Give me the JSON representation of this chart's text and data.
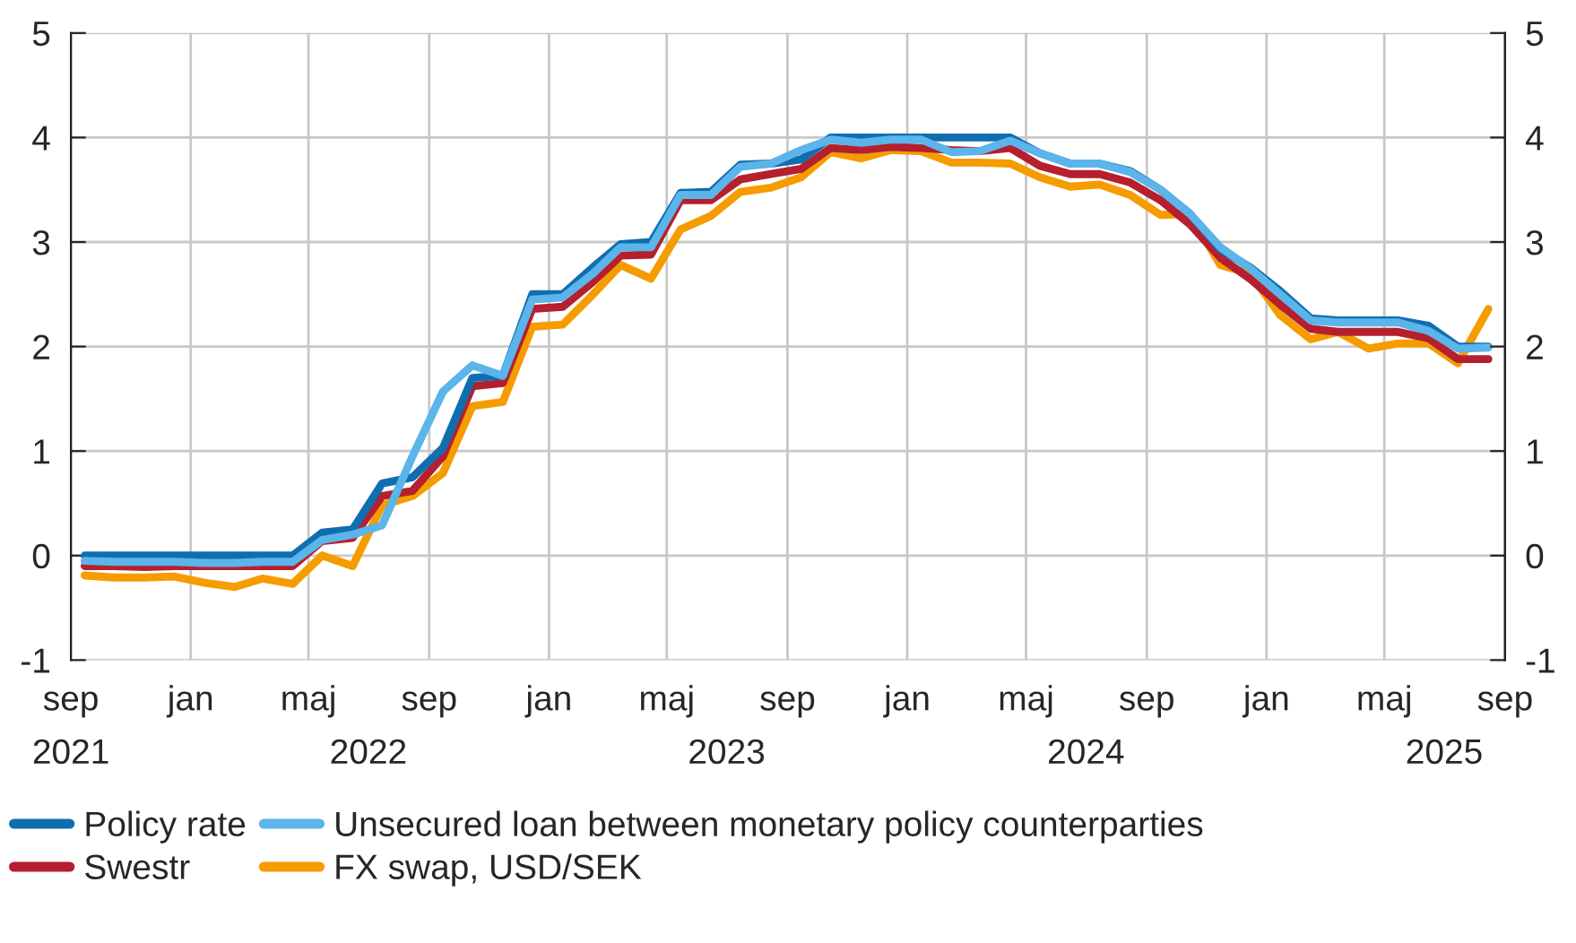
{
  "chart_data": {
    "type": "line",
    "x": [
      "2021-09-15",
      "2021-10-15",
      "2021-11-15",
      "2021-12-15",
      "2022-01-15",
      "2022-02-15",
      "2022-03-15",
      "2022-04-15",
      "2022-05-15",
      "2022-06-15",
      "2022-07-15",
      "2022-08-15",
      "2022-09-15",
      "2022-10-15",
      "2022-11-15",
      "2022-12-15",
      "2023-01-15",
      "2023-02-15",
      "2023-03-15",
      "2023-04-15",
      "2023-05-15",
      "2023-06-15",
      "2023-07-15",
      "2023-08-15",
      "2023-09-15",
      "2023-10-15",
      "2023-11-15",
      "2023-12-15",
      "2024-01-15",
      "2024-02-15",
      "2024-03-15",
      "2024-04-15",
      "2024-05-15",
      "2024-06-15",
      "2024-07-15",
      "2024-08-15",
      "2024-09-15",
      "2024-10-15",
      "2024-11-15",
      "2024-12-15",
      "2025-01-15",
      "2025-02-15",
      "2025-03-15",
      "2025-04-15",
      "2025-05-15",
      "2025-06-15",
      "2025-07-15",
      "2025-08-15"
    ],
    "series": [
      {
        "name": "Policy rate",
        "color": "#106eb0",
        "values": [
          0,
          0,
          0,
          0,
          0,
          0,
          0,
          0,
          0.22,
          0.25,
          0.69,
          0.75,
          1.03,
          1.7,
          1.72,
          2.5,
          2.5,
          2.76,
          2.98,
          3.0,
          3.47,
          3.48,
          3.74,
          3.75,
          3.79,
          4.0,
          4.0,
          4.0,
          4.0,
          4.0,
          4.0,
          4.0,
          3.85,
          3.75,
          3.75,
          3.68,
          3.5,
          3.27,
          2.93,
          2.76,
          2.53,
          2.27,
          2.25,
          2.25,
          2.25,
          2.2,
          2.0,
          2.0
        ]
      },
      {
        "name": "Unsecured loan between monetary policy counterparties",
        "color": "#5bb4ea",
        "values": [
          -0.05,
          -0.06,
          -0.06,
          -0.06,
          -0.07,
          -0.07,
          -0.06,
          -0.06,
          0.15,
          0.2,
          0.29,
          0.95,
          1.57,
          1.82,
          1.72,
          2.45,
          2.47,
          2.7,
          2.95,
          2.95,
          3.45,
          3.45,
          3.72,
          3.75,
          3.88,
          3.98,
          3.95,
          3.98,
          3.98,
          3.86,
          3.87,
          3.97,
          3.85,
          3.75,
          3.75,
          3.67,
          3.5,
          3.27,
          2.95,
          2.75,
          2.5,
          2.25,
          2.23,
          2.23,
          2.23,
          2.15,
          1.98,
          1.99
        ]
      },
      {
        "name": "Swestr",
        "color": "#b51f2e",
        "values": [
          -0.1,
          -0.1,
          -0.11,
          -0.1,
          -0.1,
          -0.1,
          -0.1,
          -0.1,
          0.14,
          0.17,
          0.57,
          0.62,
          0.95,
          1.62,
          1.65,
          2.36,
          2.38,
          2.62,
          2.87,
          2.88,
          3.4,
          3.4,
          3.6,
          3.65,
          3.7,
          3.9,
          3.88,
          3.91,
          3.9,
          3.88,
          3.87,
          3.9,
          3.73,
          3.65,
          3.65,
          3.57,
          3.4,
          3.17,
          2.85,
          2.65,
          2.4,
          2.17,
          2.14,
          2.14,
          2.14,
          2.08,
          1.88,
          1.88
        ]
      },
      {
        "name": "FX swap, USD/SEK",
        "color": "#f59c00",
        "values": [
          -0.19,
          -0.21,
          -0.21,
          -0.2,
          -0.26,
          -0.3,
          -0.22,
          -0.27,
          0.0,
          -0.1,
          0.48,
          0.57,
          0.79,
          1.43,
          1.47,
          2.19,
          2.21,
          2.5,
          2.78,
          2.65,
          3.12,
          3.25,
          3.48,
          3.52,
          3.62,
          3.86,
          3.8,
          3.88,
          3.87,
          3.76,
          3.76,
          3.75,
          3.62,
          3.53,
          3.55,
          3.45,
          3.26,
          3.27,
          2.78,
          2.7,
          2.3,
          2.07,
          2.14,
          1.98,
          2.03,
          2.03,
          1.84,
          2.36
        ]
      }
    ],
    "xlim": [
      "2021-09-01",
      "2025-09-01"
    ],
    "xticks": [
      {
        "value": "2021-09-01",
        "label": "sep"
      },
      {
        "value": "2022-01-01",
        "label": "jan"
      },
      {
        "value": "2022-05-01",
        "label": "maj"
      },
      {
        "value": "2022-09-01",
        "label": "sep"
      },
      {
        "value": "2023-01-01",
        "label": "jan"
      },
      {
        "value": "2023-05-01",
        "label": "maj"
      },
      {
        "value": "2023-09-01",
        "label": "sep"
      },
      {
        "value": "2024-01-01",
        "label": "jan"
      },
      {
        "value": "2024-05-01",
        "label": "maj"
      },
      {
        "value": "2024-09-01",
        "label": "sep"
      },
      {
        "value": "2025-01-01",
        "label": "jan"
      },
      {
        "value": "2025-05-01",
        "label": "maj"
      },
      {
        "value": "2025-09-01",
        "label": "sep"
      }
    ],
    "x2lim": [
      "2021-09-01",
      "2025-09-01"
    ],
    "x2ticks": [
      {
        "value": "2021-09-01",
        "label": "2021"
      },
      {
        "value": "2022-07-01",
        "label": "2022"
      },
      {
        "value": "2023-07-01",
        "label": "2023"
      },
      {
        "value": "2024-07-01",
        "label": "2024"
      },
      {
        "value": "2025-07-01",
        "label": "2025"
      }
    ],
    "ylim": [
      -1,
      5
    ],
    "yticks": [
      -1,
      0,
      1,
      2,
      3,
      4,
      5
    ],
    "y2lim": [
      -1,
      5
    ],
    "y2ticks": [
      -1,
      0,
      1,
      2,
      3,
      4,
      5
    ],
    "grid": true,
    "legend": "bottom",
    "line_style": "solid",
    "marker": "none"
  }
}
